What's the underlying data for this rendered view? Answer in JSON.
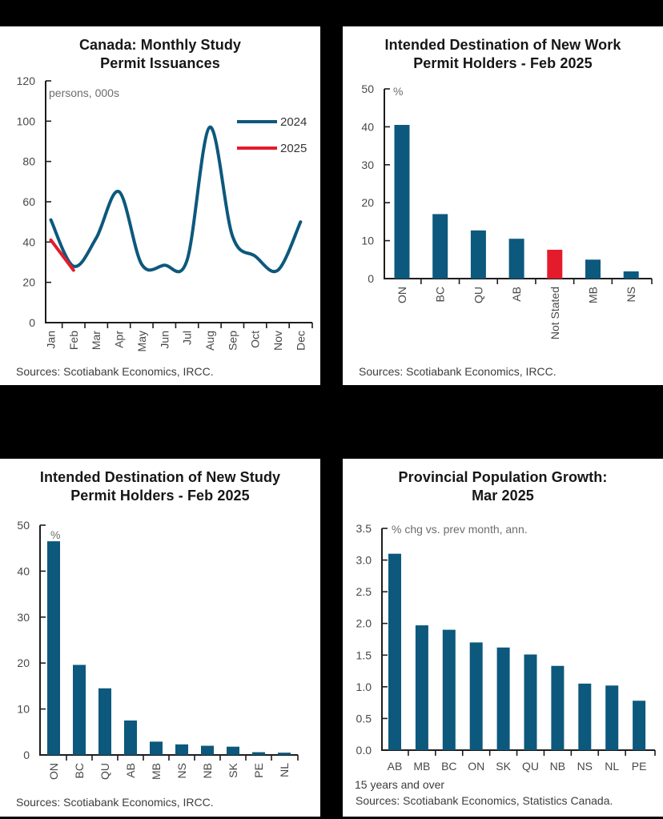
{
  "colors": {
    "page_bg": "#000000",
    "panel_bg": "#ffffff",
    "bar_blue": "#0d587d",
    "accent_red": "#e41b2c",
    "axis": "#1d1d1f",
    "tick_text": "#48484a",
    "muted_text": "#6d6d6f",
    "legend_text": "#353537"
  },
  "chart_data": [
    {
      "type": "line",
      "title_line1": "Canada: Monthly Study",
      "title_line2": "Permit Issuances",
      "unit_label": "persons, 000s",
      "x": [
        "Jan",
        "Feb",
        "Mar",
        "Apr",
        "May",
        "Jun",
        "Jul",
        "Aug",
        "Sep",
        "Oct",
        "Nov",
        "Dec"
      ],
      "series": [
        {
          "name": "2024",
          "color_key": "bar_blue",
          "values": [
            51,
            28,
            42,
            65,
            29,
            28.5,
            31,
            97,
            43,
            33,
            26,
            50
          ]
        },
        {
          "name": "2025",
          "color_key": "accent_red",
          "values": [
            41,
            26
          ]
        }
      ],
      "ylim": [
        0,
        120
      ],
      "yticks": [
        0,
        20,
        40,
        60,
        80,
        100,
        120
      ],
      "grid": false,
      "legend_position": "right",
      "source": "Sources: Scotiabank Economics, IRCC."
    },
    {
      "type": "bar",
      "title_line1": "Intended Destination of New Work",
      "title_line2": "Permit Holders - Feb 2025",
      "unit_label": "%",
      "categories": [
        "ON",
        "BC",
        "QU",
        "AB",
        "Not Stated",
        "MB",
        "NS"
      ],
      "values": [
        40.5,
        17,
        12.7,
        10.5,
        7.6,
        5,
        1.9
      ],
      "highlight_category": "Not Stated",
      "ylim": [
        0,
        50
      ],
      "yticks": [
        0,
        10,
        20,
        30,
        40,
        50
      ],
      "grid": false,
      "source": "Sources: Scotiabank Economics, IRCC."
    },
    {
      "type": "bar",
      "title_line1": "Intended Destination of New Study",
      "title_line2": "Permit Holders - Feb 2025",
      "unit_label": "%",
      "categories": [
        "ON",
        "BC",
        "QU",
        "AB",
        "MB",
        "NS",
        "NB",
        "SK",
        "PE",
        "NL"
      ],
      "values": [
        46.5,
        19.6,
        14.5,
        7.5,
        2.9,
        2.3,
        2.0,
        1.8,
        0.6,
        0.5
      ],
      "ylim": [
        0,
        50
      ],
      "yticks": [
        0,
        10,
        20,
        30,
        40,
        50
      ],
      "grid": false,
      "source": "Sources: Scotiabank Economics, IRCC."
    },
    {
      "type": "bar",
      "title_line1": "Provincial Population Growth:",
      "title_line2": "Mar 2025",
      "unit_label": "% chg vs. prev month, ann.",
      "categories": [
        "AB",
        "MB",
        "BC",
        "ON",
        "SK",
        "QU",
        "NB",
        "NS",
        "NL",
        "PE"
      ],
      "values": [
        3.1,
        1.97,
        1.9,
        1.7,
        1.62,
        1.51,
        1.33,
        1.05,
        1.02,
        0.78
      ],
      "ylim": [
        0,
        3.5
      ],
      "yticks": [
        0,
        0.5,
        1,
        1.5,
        2,
        2.5,
        3,
        3.5
      ],
      "ytick_decimals": 1,
      "grid": false,
      "footnote": "15 years and over",
      "source": "Sources: Scotiabank Economics, Statistics Canada."
    }
  ]
}
